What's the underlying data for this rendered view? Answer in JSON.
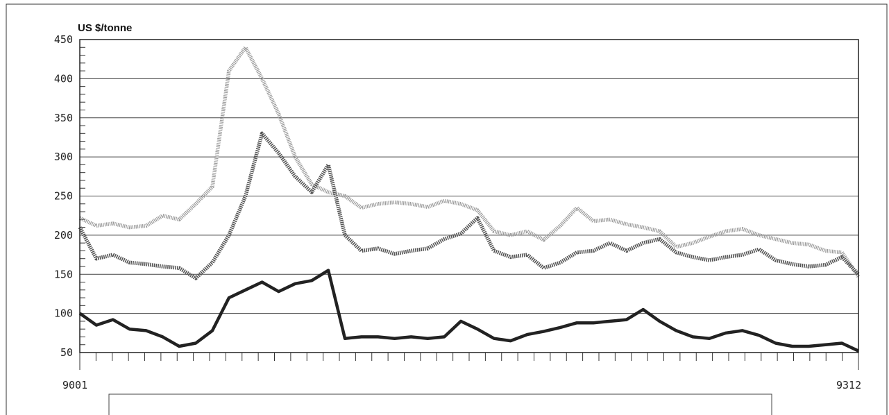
{
  "chart_data": {
    "type": "line",
    "title": "",
    "ylabel": "US $/tonne",
    "xlabel": "",
    "x_tick_labels": [
      "9001",
      "9312"
    ],
    "x_range": [
      "9001",
      "9312"
    ],
    "x_minor_ticks": 48,
    "ylim": [
      50,
      450
    ],
    "y_ticks": [
      50,
      100,
      150,
      200,
      250,
      300,
      350,
      400,
      450
    ],
    "grid": true,
    "legend": "none",
    "x": [
      "9001",
      "9002",
      "9003",
      "9004",
      "9005",
      "9006",
      "9007",
      "9008",
      "9009",
      "9010",
      "9011",
      "9012",
      "9101",
      "9102",
      "9103",
      "9104",
      "9105",
      "9106",
      "9107",
      "9108",
      "9109",
      "9110",
      "9111",
      "9112",
      "9201",
      "9202",
      "9203",
      "9204",
      "9205",
      "9206",
      "9207",
      "9208",
      "9209",
      "9210",
      "9211",
      "9212",
      "9301",
      "9302",
      "9303",
      "9304",
      "9305",
      "9306",
      "9307",
      "9308",
      "9309",
      "9310",
      "9311",
      "9312"
    ],
    "series": [
      {
        "color": "#9a9a9a",
        "style": "dotted-light",
        "values": [
          222,
          212,
          215,
          210,
          212,
          225,
          220,
          240,
          262,
          410,
          440,
          400,
          355,
          300,
          265,
          255,
          250,
          235,
          240,
          242,
          240,
          236,
          244,
          240,
          232,
          205,
          200,
          205,
          194,
          212,
          235,
          218,
          220,
          214,
          210,
          205,
          185,
          190,
          198,
          205,
          208,
          200,
          195,
          190,
          188,
          180,
          178,
          147
        ]
      },
      {
        "color": "#555555",
        "style": "dashed-medium",
        "values": [
          210,
          170,
          175,
          165,
          163,
          160,
          158,
          145,
          165,
          200,
          250,
          330,
          305,
          275,
          255,
          290,
          200,
          180,
          183,
          176,
          180,
          183,
          195,
          202,
          222,
          180,
          172,
          175,
          158,
          165,
          178,
          180,
          190,
          180,
          190,
          195,
          178,
          172,
          168,
          172,
          175,
          182,
          168,
          163,
          160,
          162,
          172,
          150
        ]
      },
      {
        "color": "#222222",
        "style": "solid-thick",
        "values": [
          100,
          85,
          92,
          80,
          78,
          70,
          58,
          62,
          78,
          120,
          130,
          140,
          128,
          138,
          142,
          155,
          68,
          70,
          70,
          68,
          70,
          68,
          70,
          90,
          80,
          68,
          65,
          73,
          77,
          82,
          88,
          88,
          90,
          92,
          105,
          90,
          78,
          70,
          68,
          75,
          78,
          72,
          62,
          58,
          58,
          60,
          62,
          52
        ]
      }
    ]
  }
}
